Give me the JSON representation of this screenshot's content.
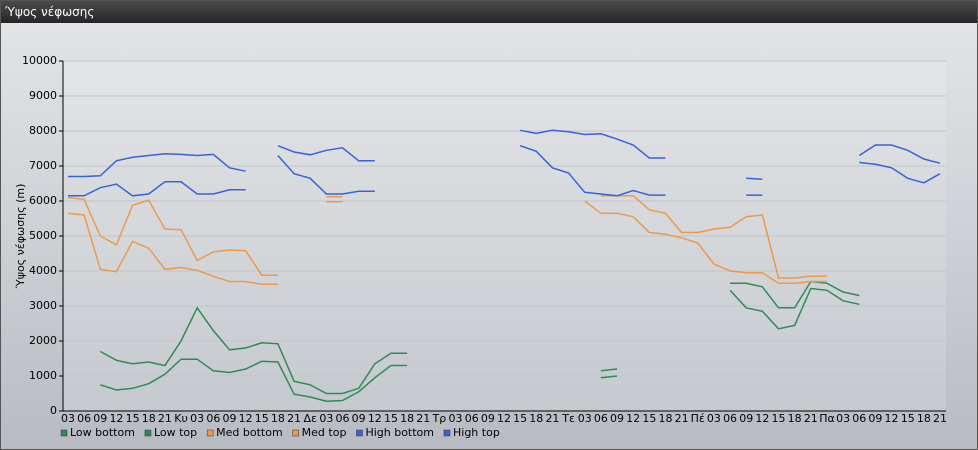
{
  "window_title": "Ύψος νέφωσης",
  "chart_data": {
    "type": "line",
    "y_label": "Ύψος νέφωσης (m)",
    "categories": [
      "03",
      "06",
      "09",
      "12",
      "15",
      "18",
      "21",
      "Κυ",
      "03",
      "06",
      "09",
      "12",
      "15",
      "18",
      "21",
      "Δε",
      "03",
      "06",
      "09",
      "12",
      "15",
      "18",
      "21",
      "Τρ",
      "03",
      "06",
      "09",
      "12",
      "15",
      "18",
      "21",
      "Τε",
      "03",
      "06",
      "09",
      "12",
      "15",
      "18",
      "21",
      "Πέ",
      "03",
      "06",
      "09",
      "12",
      "15",
      "18",
      "21",
      "Πα",
      "03",
      "06",
      "09",
      "12",
      "15",
      "18",
      "21"
    ],
    "ylim": [
      0,
      10000
    ],
    "yticks": [
      0,
      1000,
      2000,
      3000,
      4000,
      5000,
      6000,
      7000,
      8000,
      9000,
      10000
    ],
    "grid": true,
    "legend": "bottom",
    "series": [
      {
        "name": "Low bottom",
        "color": "#2e8b57",
        "values": [
          null,
          null,
          750,
          600,
          650,
          780,
          1050,
          1480,
          1480,
          1150,
          1100,
          1200,
          1420,
          1400,
          480,
          400,
          280,
          300,
          550,
          950,
          1300,
          1300,
          null,
          null,
          null,
          null,
          null,
          null,
          null,
          null,
          null,
          null,
          null,
          950,
          1000,
          null,
          null,
          null,
          null,
          null,
          null,
          3450,
          2950,
          2850,
          2350,
          2450,
          3500,
          3450,
          3150,
          3050,
          null,
          null,
          null,
          null,
          null
        ]
      },
      {
        "name": "Low top",
        "color": "#2e8b57",
        "values": [
          null,
          null,
          1700,
          1450,
          1350,
          1400,
          1300,
          2000,
          2950,
          2300,
          1750,
          1800,
          1950,
          1920,
          850,
          750,
          500,
          500,
          650,
          1350,
          1650,
          1650,
          null,
          null,
          null,
          null,
          null,
          null,
          null,
          null,
          null,
          null,
          null,
          1150,
          1200,
          null,
          null,
          null,
          null,
          null,
          null,
          3650,
          3650,
          3550,
          2950,
          2950,
          3700,
          3650,
          3400,
          3300,
          null,
          null,
          null,
          null,
          null
        ]
      },
      {
        "name": "Med bottom",
        "color": "#ec9a4a",
        "values": [
          5650,
          5600,
          4050,
          3980,
          4850,
          4650,
          4050,
          4100,
          4020,
          3850,
          3700,
          3700,
          3620,
          3620,
          null,
          null,
          5980,
          5980,
          null,
          null,
          null,
          null,
          null,
          null,
          null,
          null,
          null,
          null,
          null,
          null,
          null,
          null,
          6000,
          5650,
          5650,
          5550,
          5100,
          5050,
          4950,
          4800,
          4200,
          4000,
          3950,
          3950,
          3650,
          3650,
          3700,
          3700,
          null,
          null,
          null,
          null,
          null,
          null,
          null
        ]
      },
      {
        "name": "Med top",
        "color": "#ec9a4a",
        "values": [
          6100,
          6050,
          5000,
          4750,
          5880,
          6020,
          5200,
          5180,
          4300,
          4550,
          4600,
          4580,
          3880,
          3880,
          null,
          null,
          6120,
          6120,
          null,
          null,
          null,
          null,
          null,
          null,
          null,
          null,
          null,
          null,
          null,
          null,
          null,
          null,
          null,
          6150,
          6150,
          6150,
          5750,
          5650,
          5100,
          5100,
          5200,
          5250,
          5550,
          5600,
          3800,
          3800,
          3850,
          3850,
          null,
          null,
          null,
          null,
          null,
          null,
          null
        ]
      },
      {
        "name": "High bottom",
        "color": "#3a62d8",
        "values": [
          6150,
          6150,
          6380,
          6480,
          6150,
          6200,
          6550,
          6550,
          6200,
          6200,
          6320,
          6320,
          null,
          7300,
          6780,
          6650,
          6200,
          6200,
          6280,
          6280,
          null,
          null,
          null,
          null,
          null,
          null,
          null,
          null,
          7580,
          7420,
          6950,
          6800,
          6250,
          6200,
          6150,
          6300,
          6170,
          6170,
          null,
          null,
          null,
          null,
          6170,
          6170,
          null,
          null,
          null,
          null,
          null,
          7100,
          7050,
          6950,
          6650,
          6520,
          6780
        ]
      },
      {
        "name": "High top",
        "color": "#3a62d8",
        "values": [
          6700,
          6700,
          6720,
          7150,
          7250,
          7300,
          7350,
          7330,
          7300,
          7330,
          6950,
          6850,
          null,
          7580,
          7400,
          7320,
          7450,
          7520,
          7150,
          7150,
          null,
          null,
          null,
          null,
          null,
          null,
          null,
          null,
          8020,
          7930,
          8020,
          7980,
          7900,
          7920,
          7770,
          7600,
          7230,
          7230,
          null,
          null,
          null,
          null,
          6650,
          6620,
          null,
          null,
          null,
          null,
          null,
          7300,
          7600,
          7600,
          7450,
          7200,
          7080
        ]
      }
    ]
  }
}
